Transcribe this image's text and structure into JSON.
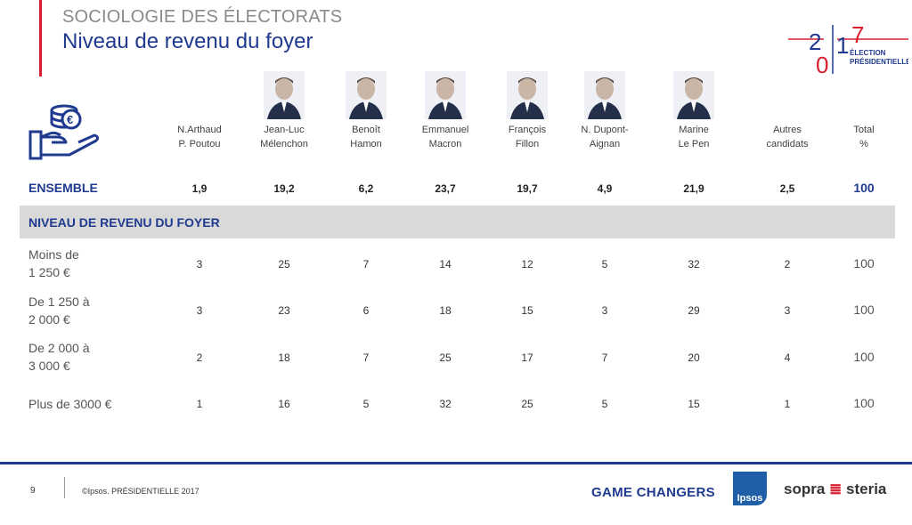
{
  "header": {
    "supertitle": "SOCIOLOGIE DES ÉLECTORATS",
    "title": "Niveau de revenu du foyer"
  },
  "logo": {
    "year_top": "2",
    "year_a": "0",
    "year_b": "1",
    "year_c": "7",
    "line1": "ÉLECTION",
    "line2": "PRÉSIDENTIELLE"
  },
  "columns": [
    {
      "line1": "N.Arthaud",
      "line2": "P. Poutou",
      "has_photo": false
    },
    {
      "line1": "Jean-Luc",
      "line2": "Mélenchon",
      "has_photo": true
    },
    {
      "line1": "Benoît",
      "line2": "Hamon",
      "has_photo": true
    },
    {
      "line1": "Emmanuel",
      "line2": "Macron",
      "has_photo": true
    },
    {
      "line1": "François",
      "line2": "Fillon",
      "has_photo": true
    },
    {
      "line1": "N. Dupont-",
      "line2": "Aignan",
      "has_photo": true
    },
    {
      "line1": "Marine",
      "line2": "Le Pen",
      "has_photo": true
    },
    {
      "line1": "Autres",
      "line2": "candidats",
      "has_photo": false
    },
    {
      "line1": "Total",
      "line2": "%",
      "has_photo": false
    }
  ],
  "ensemble": {
    "label": "ENSEMBLE",
    "values": [
      "1,9",
      "19,2",
      "6,2",
      "23,7",
      "19,7",
      "4,9",
      "21,9",
      "2,5",
      "100"
    ]
  },
  "section": {
    "label": "NIVEAU DE REVENU DU FOYER"
  },
  "rows": [
    {
      "line1": "Moins de",
      "line2": "1 250 €",
      "values": [
        "3",
        "25",
        "7",
        "14",
        "12",
        "5",
        "32",
        "2",
        "100"
      ]
    },
    {
      "line1": "De 1 250 à",
      "line2": "2 000 €",
      "values": [
        "3",
        "23",
        "6",
        "18",
        "15",
        "3",
        "29",
        "3",
        "100"
      ]
    },
    {
      "line1": "De 2 000 à",
      "line2": "3 000 €",
      "values": [
        "2",
        "18",
        "7",
        "25",
        "17",
        "7",
        "20",
        "4",
        "100"
      ]
    },
    {
      "line1": "Plus de 3000 €",
      "line2": "",
      "values": [
        "1",
        "16",
        "5",
        "32",
        "25",
        "5",
        "15",
        "1",
        "100"
      ]
    }
  ],
  "footer": {
    "page": "9",
    "copyright": "©Ipsos.  PRÉSIDENTIELLE 2017",
    "tagline": "GAME CHANGERS",
    "ipsos": "Ipsos",
    "sopra_a": "sopra",
    "sopra_b": "steria"
  },
  "colors": {
    "accent": "#1f3a8f",
    "red": "#d6202f",
    "band": "#d9d9d9"
  },
  "icons": [
    "money-hand-icon"
  ]
}
